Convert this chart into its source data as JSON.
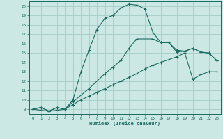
{
  "xlabel": "Humidex (Indice chaleur)",
  "bg_color": "#cce8e4",
  "grid_color": "#aacfcb",
  "line_color": "#1a6b60",
  "xlim": [
    -0.5,
    23.5
  ],
  "ylim": [
    8.5,
    20.5
  ],
  "yticks": [
    9,
    10,
    11,
    12,
    13,
    14,
    15,
    16,
    17,
    18,
    19,
    20
  ],
  "xticks": [
    0,
    1,
    2,
    3,
    4,
    5,
    6,
    7,
    8,
    9,
    10,
    11,
    12,
    13,
    14,
    15,
    16,
    17,
    18,
    19,
    20,
    21,
    22,
    23
  ],
  "series1_x": [
    0,
    1,
    2,
    3,
    4,
    5,
    6,
    7,
    8,
    9,
    10,
    11,
    12,
    13,
    14,
    15,
    16,
    17,
    18,
    19,
    20,
    21,
    22,
    23
  ],
  "series1_y": [
    9.0,
    9.2,
    8.8,
    9.2,
    9.0,
    10.0,
    13.0,
    15.3,
    17.5,
    18.7,
    19.0,
    19.8,
    20.2,
    20.1,
    19.7,
    17.2,
    16.1,
    16.1,
    15.1,
    15.2,
    15.5,
    15.1,
    15.0,
    14.2
  ],
  "series2_x": [
    0,
    2,
    4,
    5,
    7,
    9,
    10,
    11,
    12,
    13,
    15,
    16,
    17,
    18,
    19,
    20,
    21,
    22,
    23
  ],
  "series2_y": [
    9.0,
    8.8,
    9.0,
    9.8,
    11.2,
    12.8,
    13.5,
    14.2,
    15.5,
    16.5,
    16.5,
    16.1,
    16.1,
    15.3,
    15.2,
    15.5,
    15.1,
    15.0,
    14.2
  ],
  "series3_x": [
    0,
    1,
    2,
    3,
    4,
    5,
    6,
    7,
    8,
    9,
    10,
    11,
    12,
    13,
    14,
    15,
    16,
    17,
    18,
    19,
    20,
    21,
    22,
    23
  ],
  "series3_y": [
    9.0,
    9.2,
    8.8,
    9.2,
    9.0,
    9.5,
    10.0,
    10.4,
    10.8,
    11.2,
    11.6,
    12.0,
    12.4,
    12.8,
    13.3,
    13.7,
    14.0,
    14.3,
    14.6,
    15.0,
    12.2,
    12.7,
    13.0,
    13.0
  ]
}
